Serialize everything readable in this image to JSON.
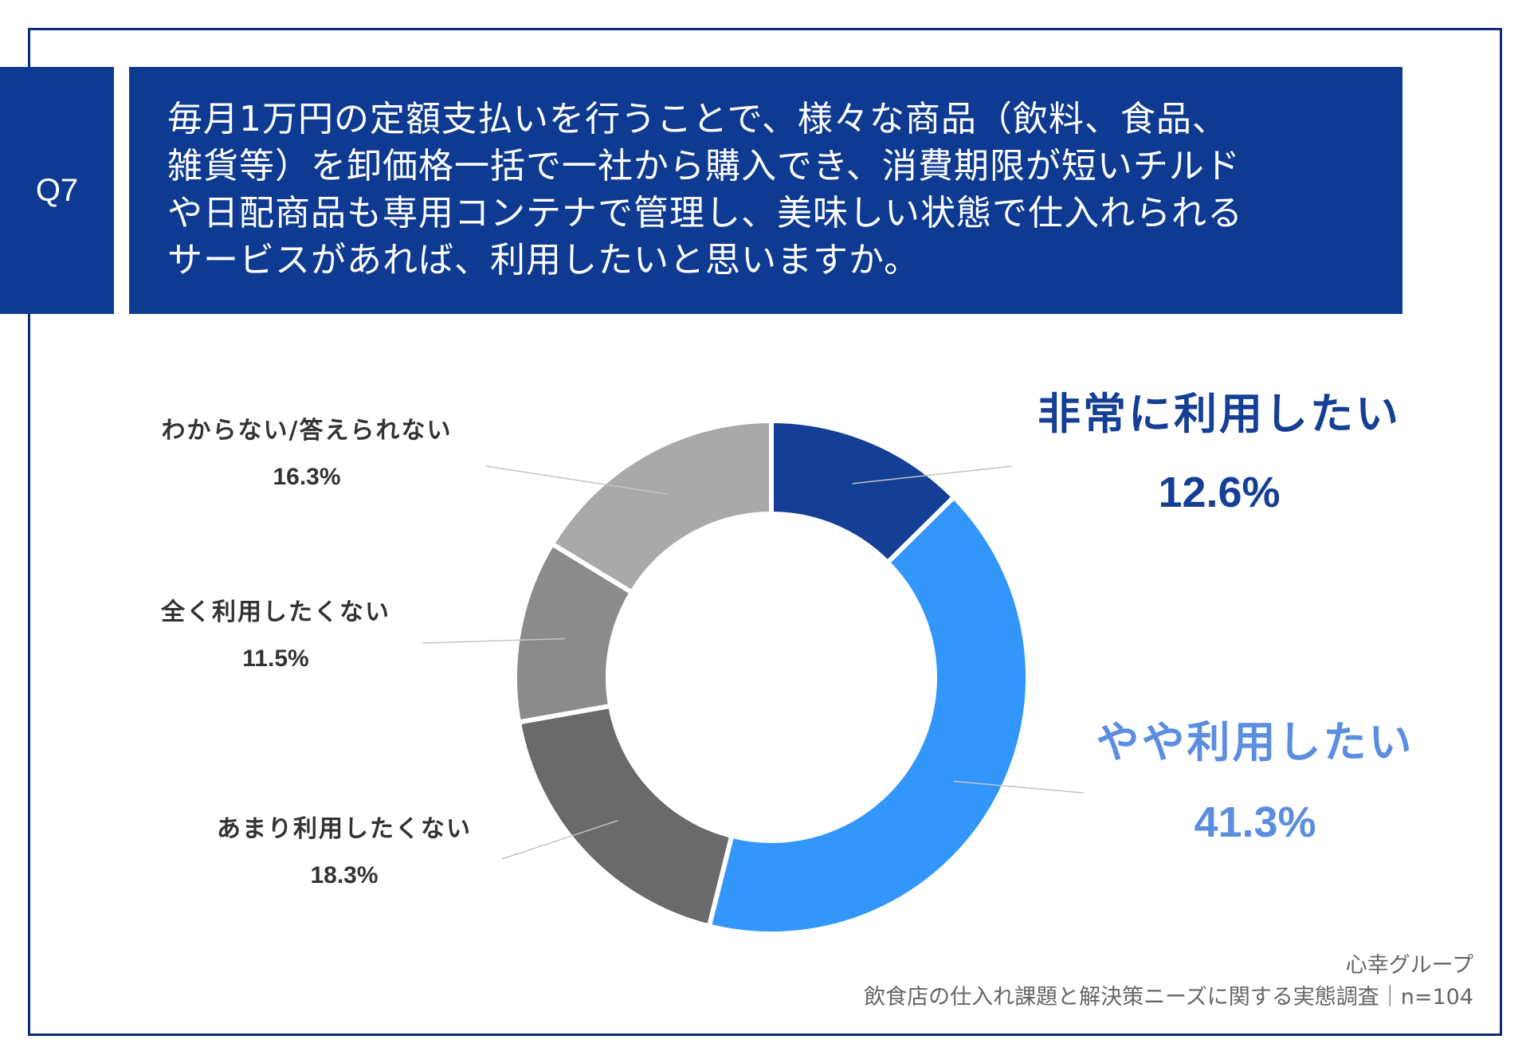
{
  "question": {
    "label": "Q7",
    "lines": [
      "毎月1万円の定額支払いを行うことで、様々な商品（飲料、食品、",
      "雑貨等）を卸価格一括で一社から購入でき、消費期限が短いチルド",
      "や日配商品も専用コンテナで管理し、美味しい状態で仕入れられる",
      "サービスがあれば、利用したいと思いますか。"
    ]
  },
  "chart_data": {
    "type": "pie",
    "variant": "donut",
    "categories": [
      "非常に利用したい",
      "やや利用したい",
      "あまり利用したくない",
      "全く利用したくない",
      "わからない/答えられない"
    ],
    "values": [
      12.6,
      41.3,
      18.3,
      11.5,
      16.3
    ],
    "value_labels": [
      "12.6%",
      "41.3%",
      "18.3%",
      "11.5%",
      "16.3%"
    ],
    "colors": [
      "#153f95",
      "#3296fa",
      "#6a6a6a",
      "#8b8b8b",
      "#a9a9a9"
    ],
    "label_colors": [
      "#153f95",
      "#5b8de0",
      "#333333",
      "#333333",
      "#333333"
    ],
    "start": "12 o'clock, clockwise"
  },
  "footer": {
    "org": "心幸グループ",
    "survey": "飲食店の仕入れ課題と解決策ニーズに関する実態調査｜n=104"
  }
}
